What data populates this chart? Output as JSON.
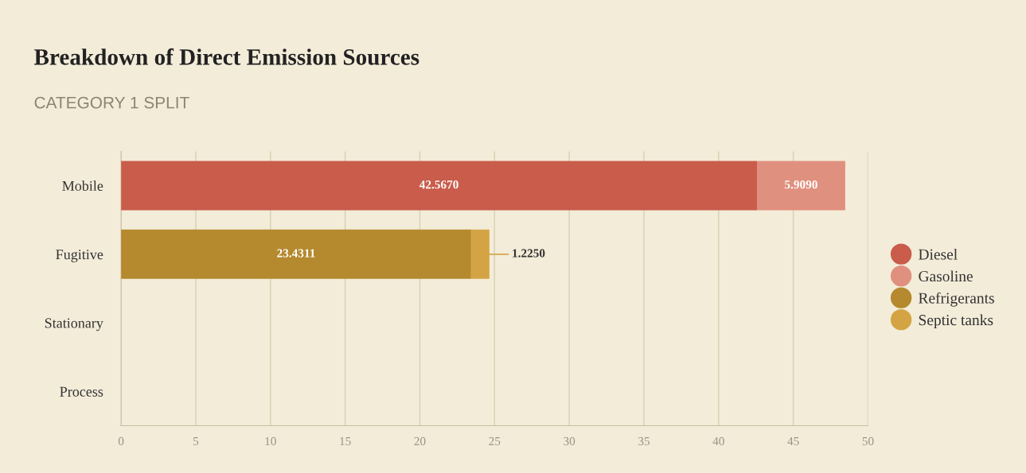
{
  "chart_data": {
    "type": "bar",
    "orientation": "horizontal",
    "stacked": true,
    "title": "Breakdown of Direct Emission Sources",
    "subtitle": "CATEGORY 1 SPLIT",
    "categories": [
      "Mobile",
      "Fugitive",
      "Stationary",
      "Process"
    ],
    "series": [
      {
        "name": "Diesel",
        "color": "#c95c4b",
        "values": [
          42.567,
          null,
          null,
          null
        ],
        "value_labels": [
          "42.5670",
          null,
          null,
          null
        ]
      },
      {
        "name": "Gasoline",
        "color": "#e0907f",
        "values": [
          5.909,
          null,
          null,
          null
        ],
        "value_labels": [
          "5.9090",
          null,
          null,
          null
        ]
      },
      {
        "name": "Refrigerants",
        "color": "#b5892e",
        "values": [
          null,
          23.4311,
          null,
          null
        ],
        "value_labels": [
          null,
          "23.4311",
          null,
          null
        ]
      },
      {
        "name": "Septic tanks",
        "color": "#d4a444",
        "values": [
          null,
          1.225,
          null,
          null
        ],
        "value_labels": [
          null,
          "1.2250",
          null,
          null
        ]
      }
    ],
    "xlim": [
      0,
      50
    ],
    "xticks": [
      0,
      5,
      10,
      15,
      20,
      25,
      30,
      35,
      40,
      45,
      50
    ],
    "grid": "x",
    "legend": "right"
  }
}
